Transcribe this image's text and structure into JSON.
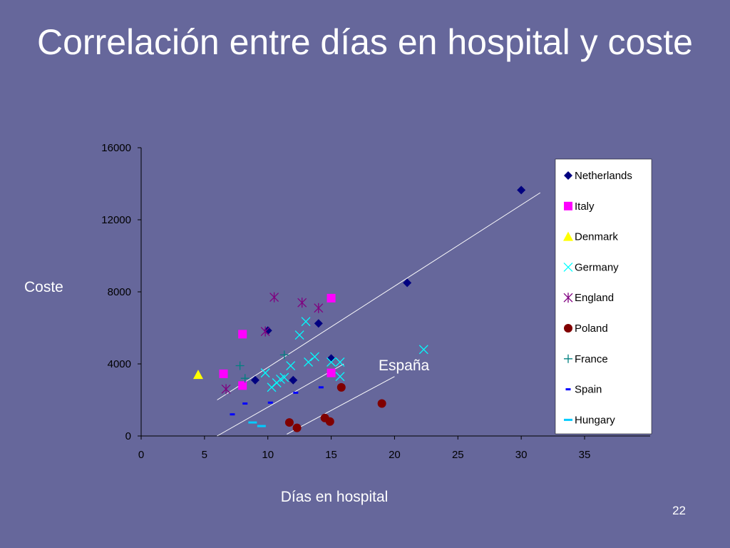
{
  "slide": {
    "title": "Correlación entre días en hospital y coste",
    "page_number": "22"
  },
  "colors": {
    "background": "#66679b",
    "Netherlands": "#000080",
    "Italy": "#ff00ff",
    "Denmark": "#ffff00",
    "Germany": "#00ffff",
    "England": "#800080",
    "Poland": "#800000",
    "France": "#008080",
    "Spain": "#0000ff",
    "Hungary": "#00ccff"
  },
  "chart_data": {
    "type": "scatter",
    "title": "",
    "xlabel": "Días en hospital",
    "ylabel": "Coste",
    "xlim": [
      0,
      35
    ],
    "ylim": [
      0,
      16000
    ],
    "x_ticks": [
      "0",
      "5",
      "10",
      "15",
      "20",
      "25",
      "30",
      "35"
    ],
    "y_ticks": [
      "0",
      "4000",
      "8000",
      "12000",
      "16000"
    ],
    "grid": false,
    "legend_position": "right",
    "annotation": "España",
    "series": [
      {
        "name": "Netherlands",
        "marker": "diamond",
        "points": [
          [
            9,
            3100
          ],
          [
            10,
            5850
          ],
          [
            12,
            3100
          ],
          [
            14,
            6250
          ],
          [
            15,
            4300
          ],
          [
            21,
            8500
          ],
          [
            30,
            13650
          ]
        ]
      },
      {
        "name": "Italy",
        "marker": "square",
        "points": [
          [
            6.5,
            3450
          ],
          [
            8,
            2800
          ],
          [
            8,
            5650
          ],
          [
            15,
            3500
          ],
          [
            15,
            7650
          ]
        ]
      },
      {
        "name": "Denmark",
        "marker": "triangle",
        "points": [
          [
            4.5,
            3400
          ]
        ]
      },
      {
        "name": "Germany",
        "marker": "x",
        "points": [
          [
            9.8,
            3500
          ],
          [
            10.3,
            2700
          ],
          [
            10.7,
            2950
          ],
          [
            11,
            3150
          ],
          [
            11.3,
            3250
          ],
          [
            11.8,
            3900
          ],
          [
            12.5,
            5600
          ],
          [
            13,
            6350
          ],
          [
            13.2,
            4100
          ],
          [
            13.7,
            4400
          ],
          [
            15,
            4100
          ],
          [
            15.7,
            4100
          ],
          [
            15.7,
            3300
          ],
          [
            22.3,
            4800
          ]
        ]
      },
      {
        "name": "England",
        "marker": "asterisk",
        "points": [
          [
            6.7,
            2600
          ],
          [
            9.8,
            5800
          ],
          [
            10.5,
            7700
          ],
          [
            12.7,
            7400
          ],
          [
            14,
            7100
          ]
        ]
      },
      {
        "name": "Poland",
        "marker": "circle",
        "points": [
          [
            11.7,
            750
          ],
          [
            12.3,
            450
          ],
          [
            14.5,
            1000
          ],
          [
            14.9,
            800
          ],
          [
            15.8,
            2700
          ],
          [
            19,
            1800
          ]
        ]
      },
      {
        "name": "France",
        "marker": "plus",
        "points": [
          [
            7.8,
            3900
          ],
          [
            8.2,
            3200
          ],
          [
            11.3,
            4500
          ]
        ]
      },
      {
        "name": "Spain",
        "marker": "short-dash",
        "points": [
          [
            7.2,
            1200
          ],
          [
            8.2,
            1800
          ],
          [
            10.2,
            1850
          ],
          [
            12.2,
            2400
          ],
          [
            14.2,
            2700
          ]
        ]
      },
      {
        "name": "Hungary",
        "marker": "dash",
        "points": [
          [
            8.8,
            750
          ],
          [
            9.5,
            550
          ]
        ]
      }
    ],
    "trend_lines": [
      {
        "from": [
          6,
          2000
        ],
        "to": [
          31.5,
          13500
        ]
      },
      {
        "from": [
          6,
          0
        ],
        "to": [
          16,
          4000
        ]
      },
      {
        "from": [
          11.5,
          100
        ],
        "to": [
          20,
          3300
        ]
      }
    ]
  }
}
